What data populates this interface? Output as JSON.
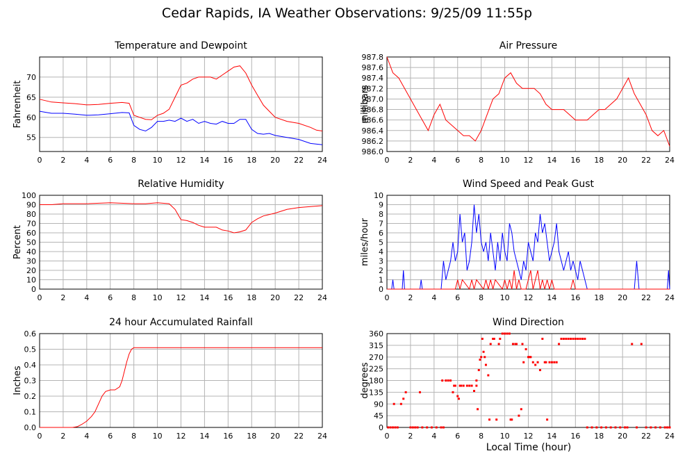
{
  "page_title": "Cedar Rapids, IA Weather Observations: 9/25/09 11:55p",
  "shared_xlabel": "Local Time (hour)",
  "chart_data": [
    {
      "id": "temp",
      "type": "line",
      "title": "Temperature and Dewpoint",
      "ylabel": "Fahrenheit",
      "xlim": [
        0,
        24
      ],
      "ylim": [
        51.5,
        75
      ],
      "xticks": [
        0,
        2,
        4,
        6,
        8,
        10,
        12,
        14,
        16,
        18,
        20,
        22,
        24
      ],
      "yticks": [
        55,
        60,
        65,
        70
      ],
      "grid": true,
      "series": [
        {
          "color": "#ff0000",
          "x": [
            0,
            1,
            2,
            3,
            4,
            5,
            6,
            7,
            7.6,
            7.8,
            8,
            8.5,
            9,
            9.5,
            10,
            10.5,
            11,
            11.5,
            12,
            12.5,
            13,
            13.5,
            14,
            14.5,
            15,
            15.5,
            16,
            16.5,
            17,
            17.5,
            18,
            18.5,
            19,
            19.5,
            20,
            21,
            22,
            23,
            23.5,
            24
          ],
          "y": [
            64.5,
            63.8,
            63.6,
            63.4,
            63.1,
            63.2,
            63.5,
            63.7,
            63.5,
            62,
            60.5,
            60,
            59.5,
            59.4,
            60.5,
            61,
            62,
            65,
            68,
            68.5,
            69.5,
            70,
            70,
            70,
            69.5,
            70.5,
            71.5,
            72.5,
            72.8,
            71,
            68,
            65.5,
            63,
            61.5,
            60,
            59,
            58.5,
            57.5,
            56.8,
            56.6
          ]
        },
        {
          "color": "#0000ff",
          "x": [
            0,
            1,
            2,
            3,
            4,
            5,
            6,
            7,
            7.6,
            8,
            8.5,
            9,
            9.5,
            10,
            10.5,
            11,
            11.5,
            12,
            12.5,
            13,
            13.5,
            14,
            14.5,
            15,
            15.5,
            16,
            16.5,
            17,
            17.5,
            18,
            18.5,
            19,
            19.5,
            20,
            21,
            22,
            23,
            24
          ],
          "y": [
            61.5,
            61,
            61,
            60.8,
            60.5,
            60.6,
            60.9,
            61.2,
            61.1,
            58,
            57,
            56.6,
            57.5,
            59,
            59,
            59.3,
            59,
            59.8,
            59,
            59.5,
            58.5,
            59,
            58.5,
            58.3,
            59,
            58.5,
            58.5,
            59.5,
            59.5,
            57,
            56,
            55.8,
            56,
            55.5,
            55,
            54.5,
            53.5,
            53.2
          ]
        }
      ]
    },
    {
      "id": "pressure",
      "type": "line",
      "title": "Air Pressure",
      "ylabel": "millibars",
      "xlim": [
        0,
        24
      ],
      "ylim": [
        986.0,
        987.8
      ],
      "xticks": [
        0,
        2,
        4,
        6,
        8,
        10,
        12,
        14,
        16,
        18,
        20,
        22,
        24
      ],
      "yticks": [
        986.0,
        986.2,
        986.4,
        986.6,
        986.8,
        987.0,
        987.2,
        987.4,
        987.6,
        987.8
      ],
      "ytick_labels": [
        "986.0",
        "986.2",
        "986.4",
        "986.6",
        "986.8",
        "987.0",
        "987.2",
        "987.4",
        "987.6",
        "987.8"
      ],
      "grid": true,
      "series": [
        {
          "color": "#ff0000",
          "x": [
            0,
            0.5,
            1,
            1.5,
            2,
            2.5,
            3,
            3.5,
            4,
            4.5,
            5,
            5.5,
            6,
            6.5,
            7,
            7.5,
            8,
            8.5,
            9,
            9.5,
            10,
            10.5,
            11,
            11.5,
            12,
            12.5,
            13,
            13.5,
            14,
            14.5,
            15,
            15.5,
            16,
            16.5,
            17,
            17.5,
            18,
            18.5,
            19,
            19.5,
            20,
            20.5,
            21,
            21.5,
            22,
            22.5,
            23,
            23.5,
            24
          ],
          "y": [
            987.8,
            987.5,
            987.4,
            987.2,
            987.0,
            986.8,
            986.6,
            986.4,
            986.7,
            986.9,
            986.6,
            986.5,
            986.4,
            986.3,
            986.3,
            986.2,
            986.4,
            986.7,
            987.0,
            987.1,
            987.4,
            987.5,
            987.3,
            987.2,
            987.2,
            987.2,
            987.1,
            986.9,
            986.8,
            986.8,
            986.8,
            986.7,
            986.6,
            986.6,
            986.6,
            986.7,
            986.8,
            986.8,
            986.9,
            987.0,
            987.2,
            987.4,
            987.1,
            986.9,
            986.7,
            986.4,
            986.3,
            986.4,
            986.1
          ]
        }
      ]
    },
    {
      "id": "rh",
      "type": "line",
      "title": "Relative Humidity",
      "ylabel": "Percent",
      "xlim": [
        0,
        24
      ],
      "ylim": [
        0,
        100
      ],
      "xticks": [
        0,
        2,
        4,
        6,
        8,
        10,
        12,
        14,
        16,
        18,
        20,
        22,
        24
      ],
      "yticks": [
        0,
        10,
        20,
        30,
        40,
        50,
        60,
        70,
        80,
        90,
        100
      ],
      "grid": true,
      "series": [
        {
          "color": "#ff0000",
          "x": [
            0,
            1,
            2,
            4,
            6,
            8,
            9,
            10,
            11,
            11.5,
            12,
            12.5,
            13,
            13.5,
            14,
            14.5,
            15,
            15.5,
            16,
            16.5,
            17,
            17.5,
            18,
            18.5,
            19,
            20,
            21,
            22,
            23,
            24
          ],
          "y": [
            90,
            90,
            91,
            91,
            92,
            91,
            91,
            92,
            91,
            85,
            74,
            73,
            71,
            68,
            66,
            66,
            66,
            63,
            62,
            60,
            61,
            63,
            71,
            75,
            78,
            81,
            85,
            87,
            88,
            89
          ]
        }
      ]
    },
    {
      "id": "wind",
      "type": "line",
      "title": "Wind Speed and Peak Gust",
      "ylabel": "miles/hour",
      "xlim": [
        0,
        24
      ],
      "ylim": [
        0,
        10
      ],
      "xticks": [
        0,
        2,
        4,
        6,
        8,
        10,
        12,
        14,
        16,
        18,
        20,
        22,
        24
      ],
      "yticks": [
        0,
        1,
        2,
        3,
        4,
        5,
        6,
        7,
        8,
        9,
        10
      ],
      "grid": true,
      "series": [
        {
          "color": "#0000ff",
          "x": [
            0,
            0.4,
            0.5,
            0.6,
            1.3,
            1.4,
            1.5,
            2.8,
            2.9,
            3.0,
            4.6,
            4.8,
            5,
            5.2,
            5.4,
            5.6,
            5.8,
            6,
            6.2,
            6.4,
            6.6,
            6.8,
            7,
            7.2,
            7.4,
            7.6,
            7.8,
            8,
            8.2,
            8.4,
            8.6,
            8.8,
            9,
            9.2,
            9.4,
            9.6,
            9.8,
            10,
            10.2,
            10.4,
            10.6,
            10.8,
            11,
            11.2,
            11.4,
            11.6,
            11.8,
            12,
            12.2,
            12.4,
            12.6,
            12.8,
            13,
            13.2,
            13.4,
            13.6,
            13.8,
            14,
            14.2,
            14.4,
            14.6,
            14.8,
            15,
            15.2,
            15.4,
            15.6,
            15.8,
            16,
            16.2,
            16.4,
            16.6,
            16.8,
            17.0,
            20.8,
            21.0,
            21.2,
            21.4,
            23.8,
            23.9,
            24
          ],
          "y": [
            0,
            0,
            1,
            0,
            0,
            2,
            0,
            0,
            1,
            0,
            0,
            3,
            1,
            2,
            3,
            5,
            3,
            4,
            8,
            5,
            6,
            2,
            3,
            5,
            9,
            6,
            8,
            5,
            4,
            5,
            3,
            6,
            4,
            2,
            5,
            3,
            6,
            4,
            3,
            7,
            6,
            4,
            3,
            2,
            1,
            3,
            2,
            5,
            4,
            3,
            6,
            5,
            8,
            6,
            7,
            5,
            3,
            4,
            5,
            7,
            4,
            3,
            2,
            3,
            4,
            2,
            3,
            2,
            1,
            3,
            2,
            1,
            0,
            0,
            0,
            3,
            0,
            0,
            2,
            0
          ]
        },
        {
          "color": "#ff0000",
          "x": [
            0,
            5.8,
            6,
            6.2,
            6.4,
            7.0,
            7.2,
            7.4,
            7.6,
            8.2,
            8.4,
            8.6,
            8.8,
            9.0,
            9.2,
            9.8,
            10.0,
            10.2,
            10.4,
            10.6,
            10.8,
            11.0,
            11.2,
            11.4,
            11.8,
            12.0,
            12.2,
            12.4,
            12.6,
            12.8,
            13.0,
            13.2,
            13.4,
            13.6,
            13.8,
            14.0,
            14.2,
            15.6,
            15.8,
            16.0,
            24
          ],
          "y": [
            0,
            0,
            1,
            0,
            1,
            0,
            1,
            0,
            1,
            0,
            1,
            0,
            1,
            0,
            1,
            0,
            1,
            0,
            1,
            0,
            2,
            0,
            1,
            0,
            0,
            1,
            2,
            0,
            1,
            2,
            0,
            1,
            0,
            1,
            0,
            1,
            0,
            0,
            1,
            0,
            0
          ]
        }
      ]
    },
    {
      "id": "rain",
      "type": "line",
      "title": "24 hour Accumulated Rainfall",
      "ylabel": "Inches",
      "xlim": [
        0,
        24
      ],
      "ylim": [
        0,
        0.6
      ],
      "xticks": [
        0,
        2,
        4,
        6,
        8,
        10,
        12,
        14,
        16,
        18,
        20,
        22,
        24
      ],
      "yticks": [
        0,
        0.1,
        0.2,
        0.3,
        0.4,
        0.5,
        0.6
      ],
      "ytick_labels": [
        "0.0",
        "0.1",
        "0.2",
        "0.3",
        "0.4",
        "0.5",
        "0.6"
      ],
      "grid": true,
      "series": [
        {
          "color": "#ff0000",
          "x": [
            0,
            2.8,
            3.2,
            3.6,
            4,
            4.4,
            4.7,
            5,
            5.3,
            5.6,
            6,
            6.4,
            6.8,
            7,
            7.2,
            7.4,
            7.6,
            7.8,
            8,
            24
          ],
          "y": [
            0,
            0,
            0.005,
            0.02,
            0.04,
            0.07,
            0.1,
            0.15,
            0.2,
            0.23,
            0.24,
            0.24,
            0.26,
            0.3,
            0.36,
            0.42,
            0.47,
            0.5,
            0.51,
            0.51
          ]
        }
      ]
    },
    {
      "id": "winddir",
      "type": "scatter",
      "title": "Wind Direction",
      "ylabel": "degrees",
      "xlim": [
        0,
        24
      ],
      "ylim": [
        0,
        360
      ],
      "xticks": [
        0,
        2,
        4,
        6,
        8,
        10,
        12,
        14,
        16,
        18,
        20,
        22,
        24
      ],
      "yticks": [
        0,
        45,
        90,
        135,
        180,
        225,
        270,
        315,
        360
      ],
      "grid": true,
      "series": [
        {
          "color": "#ff0000",
          "x": [
            0.1,
            0.3,
            0.5,
            0.7,
            0.9,
            0.6,
            1.2,
            1.4,
            1.6,
            2.0,
            2.2,
            2.4,
            2.8,
            2.6,
            3.0,
            3.4,
            3.8,
            4.2,
            4.6,
            4.8,
            4.7,
            5.0,
            5.2,
            5.4,
            5.6,
            5.7,
            5.8,
            6.0,
            6.2,
            6.1,
            6.3,
            6.5,
            6.8,
            7.0,
            7.2,
            7.4,
            7.6,
            7.6,
            7.7,
            7.8,
            7.9,
            8.0,
            8.1,
            8.2,
            8.3,
            8.4,
            8.6,
            8.8,
            8.7,
            9.0,
            9.1,
            9.3,
            9.5,
            9.6,
            9.8,
            10.0,
            10.2,
            10.4,
            10.5,
            10.6,
            10.7,
            10.9,
            11.0,
            11.2,
            11.4,
            11.5,
            11.6,
            11.8,
            12.0,
            12.1,
            12.2,
            12.4,
            12.6,
            12.8,
            13.0,
            13.2,
            13.4,
            13.5,
            13.6,
            13.8,
            14.0,
            14.2,
            14.4,
            14.6,
            14.8,
            15.0,
            15.2,
            15.4,
            15.6,
            15.8,
            16.0,
            16.2,
            16.4,
            16.6,
            16.8,
            17.0,
            17.4,
            17.8,
            18.2,
            18.6,
            19.0,
            19.4,
            19.8,
            20.2,
            20.4,
            20.8,
            21.2,
            21.6,
            22.0,
            22.4,
            22.8,
            23.2,
            23.6,
            23.8,
            24.0
          ],
          "y": [
            0,
            0,
            0,
            0,
            0,
            90,
            90,
            110,
            135,
            0,
            0,
            0,
            135,
            0,
            0,
            0,
            0,
            0,
            0,
            0,
            180,
            180,
            180,
            180,
            135,
            160,
            160,
            120,
            160,
            110,
            160,
            160,
            160,
            160,
            160,
            140,
            160,
            180,
            70,
            220,
            260,
            270,
            340,
            290,
            270,
            240,
            200,
            320,
            30,
            340,
            340,
            30,
            320,
            340,
            360,
            360,
            360,
            360,
            30,
            30,
            320,
            320,
            320,
            45,
            70,
            320,
            250,
            300,
            270,
            270,
            270,
            250,
            240,
            250,
            220,
            340,
            250,
            250,
            30,
            250,
            250,
            250,
            250,
            320,
            340,
            340,
            340,
            340,
            340,
            340,
            340,
            340,
            340,
            340,
            340,
            0,
            0,
            0,
            0,
            0,
            0,
            0,
            0,
            0,
            0,
            320,
            0,
            320,
            0,
            0,
            0,
            0,
            0,
            0,
            0
          ]
        }
      ]
    }
  ]
}
